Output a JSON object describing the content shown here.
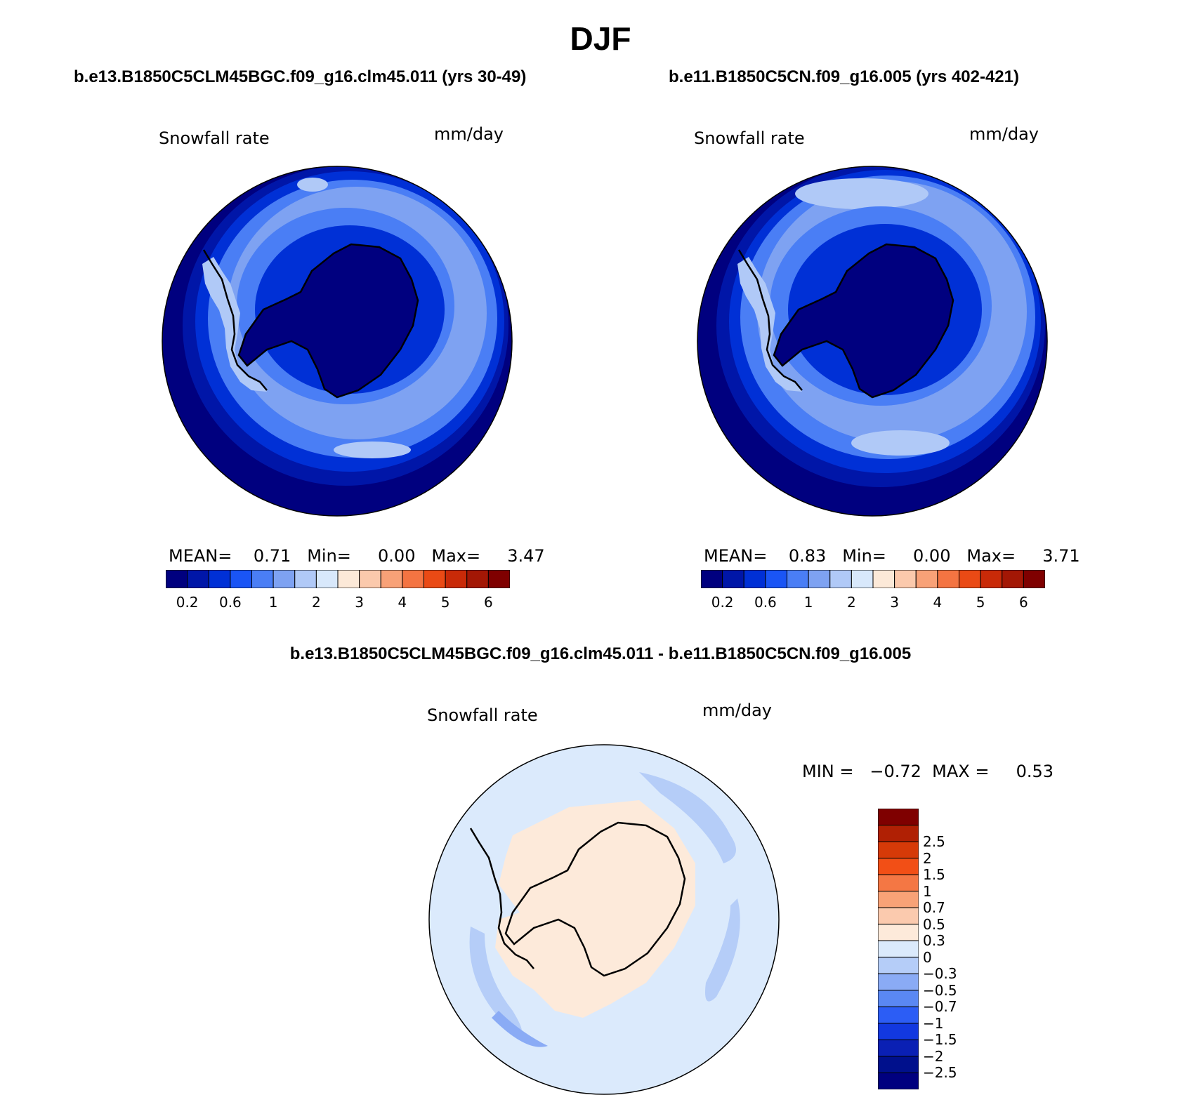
{
  "figure_title": "DJF",
  "panels": [
    {
      "case_title": "b.e13.B1850C5CLM45BGC.f09_g16.clm45.011 (yrs 30-49)",
      "variable": "Snowfall rate",
      "units": "mm/day",
      "stats_line": "MEAN=    0.71   Min=     0.00   Max=     3.47",
      "mean": 0.71,
      "min": 0.0,
      "max": 3.47
    },
    {
      "case_title": "b.e11.B1850C5CN.f09_g16.005 (yrs 402-421)",
      "variable": "Snowfall rate",
      "units": "mm/day",
      "stats_line": "MEAN=    0.83   Min=     0.00   Max=     3.71",
      "mean": 0.83,
      "min": 0.0,
      "max": 3.71
    }
  ],
  "diff_panel": {
    "case_title": "b.e13.B1850C5CLM45BGC.f09_g16.clm45.011 - b.e11.B1850C5CN.f09_g16.005",
    "variable": "Snowfall rate",
    "units": "mm/day",
    "minmax_line": "MIN =   −0.72  MAX =     0.53",
    "min": -0.72,
    "max": 0.53
  },
  "colorbar_abs": {
    "colors": [
      "#00007f",
      "#0016a8",
      "#0030d6",
      "#1a55f5",
      "#4a7ef5",
      "#7ea2f2",
      "#b0c9f7",
      "#d8e8fb",
      "#fce9d8",
      "#fbc9ac",
      "#f8a177",
      "#f47442",
      "#ea4a15",
      "#c92a08",
      "#a31705",
      "#7f0000"
    ],
    "tick_labels": [
      "0.2",
      "0.6",
      "1",
      "2",
      "3",
      "4",
      "5",
      "6"
    ]
  },
  "colorbar_diff": {
    "colors_top_to_bottom": [
      "#7f0000",
      "#b02004",
      "#d63a08",
      "#f24f16",
      "#f47744",
      "#f8a277",
      "#fbcaae",
      "#fdeada",
      "#dbeafc",
      "#b5cdf8",
      "#8aabf5",
      "#5a88f3",
      "#2c5df5",
      "#1238e0",
      "#0a20b4",
      "#00108c",
      "#00007f"
    ],
    "tick_labels_top_to_bottom": [
      "2.5",
      "2",
      "1.5",
      "1",
      "0.7",
      "0.5",
      "0.3",
      "0",
      "−0.3",
      "−0.5",
      "−0.7",
      "−1",
      "−1.5",
      "−2",
      "−2.5"
    ]
  },
  "colors": {
    "coastline": "#000000",
    "ocean_dark": "#00007f",
    "ocean_mid": "#2c5df5",
    "ocean_light": "#8aabf5"
  }
}
